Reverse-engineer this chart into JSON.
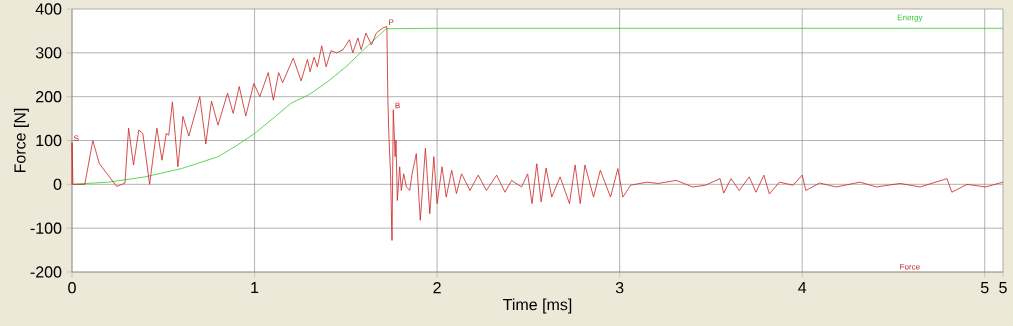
{
  "chart_data": {
    "type": "line",
    "xlabel": "Time [ms]",
    "ylabel": "Force [N]",
    "xlim": [
      0,
      5.1
    ],
    "ylim": [
      -200,
      400
    ],
    "xticks": [
      0,
      1,
      2,
      3,
      4,
      5,
      {
        "value": 5.1,
        "label": "5"
      }
    ],
    "yticks": [
      -200,
      -100,
      0,
      100,
      200,
      300,
      400
    ],
    "grid": true,
    "marker": "none",
    "line_style": "solid",
    "annotations": [
      {
        "text": "S",
        "x": 0,
        "y": 95
      },
      {
        "text": "P",
        "x": 1.725,
        "y": 360
      },
      {
        "text": "B",
        "x": 1.76,
        "y": 170
      }
    ],
    "series": [
      {
        "name": "Energy",
        "color": "#33cc33",
        "x": [
          0,
          0.2,
          0.4,
          0.6,
          0.8,
          0.9,
          1,
          1.1,
          1.2,
          1.3,
          1.4,
          1.5,
          1.6,
          1.72,
          2,
          3,
          4,
          5.1
        ],
        "values": [
          0,
          5,
          17,
          36,
          63,
          88,
          116,
          150,
          185,
          205,
          234,
          268,
          308,
          355,
          356,
          356,
          356,
          356
        ]
      },
      {
        "name": "Force",
        "color": "#cc2222",
        "x": [
          0,
          0,
          0.005,
          0.07,
          0.114,
          0.15,
          0.205,
          0.245,
          0.29,
          0.31,
          0.337,
          0.366,
          0.388,
          0.425,
          0.465,
          0.493,
          0.516,
          0.53,
          0.55,
          0.58,
          0.608,
          0.64,
          0.7,
          0.733,
          0.764,
          0.8,
          0.852,
          0.883,
          0.916,
          0.952,
          0.996,
          1.029,
          1.075,
          1.103,
          1.132,
          1.154,
          1.212,
          1.255,
          1.29,
          1.304,
          1.326,
          1.344,
          1.368,
          1.392,
          1.419,
          1.45,
          1.484,
          1.52,
          1.538,
          1.566,
          1.584,
          1.61,
          1.64,
          1.667,
          1.703,
          1.725,
          1.73,
          1.736,
          1.745,
          1.753,
          1.76,
          1.77,
          1.775,
          1.782,
          1.795,
          1.804,
          1.817,
          1.832,
          1.85,
          1.863,
          1.886,
          1.908,
          1.936,
          1.96,
          1.982,
          2,
          2.027,
          2.05,
          2.08,
          2.106,
          2.134,
          2.18,
          2.225,
          2.27,
          2.326,
          2.372,
          2.408,
          2.463,
          2.496,
          2.52,
          2.546,
          2.57,
          2.597,
          2.628,
          2.674,
          2.725,
          2.756,
          2.784,
          2.81,
          2.857,
          2.894,
          2.95,
          2.99,
          3.018,
          3.06,
          3.15,
          3.21,
          3.31,
          3.4,
          3.47,
          3.55,
          3.57,
          3.61,
          3.655,
          3.71,
          3.747,
          3.79,
          3.82,
          3.875,
          3.95,
          4,
          4.02,
          4.095,
          4.187,
          4.316,
          4.407,
          4.536,
          4.646,
          4.793,
          4.82,
          4.903,
          5.004,
          5.1
        ],
        "values": [
          0,
          95,
          0,
          0,
          100,
          47,
          17,
          -5,
          3,
          128,
          44,
          124,
          116,
          0,
          128,
          55,
          116,
          112,
          188,
          40,
          155,
          110,
          200,
          92,
          190,
          135,
          208,
          162,
          223,
          156,
          230,
          200,
          255,
          192,
          255,
          232,
          288,
          236,
          285,
          257,
          290,
          268,
          316,
          268,
          305,
          300,
          307,
          330,
          300,
          334,
          307,
          345,
          318,
          345,
          357,
          360,
          200,
          108,
          24,
          -128,
          170,
          63,
          101,
          -37,
          40,
          -14,
          24,
          -6,
          -14,
          24,
          70,
          -82,
          82,
          -67,
          63,
          -44,
          40,
          -29,
          32,
          -21,
          24,
          -14,
          21,
          -14,
          21,
          -18,
          9,
          -6,
          24,
          -44,
          47,
          -40,
          37,
          -29,
          17,
          -44,
          44,
          -44,
          44,
          -29,
          32,
          -29,
          36,
          -29,
          -2,
          5,
          2,
          9,
          -6,
          -2,
          13,
          -20,
          13,
          -14,
          17,
          -18,
          21,
          -22,
          5,
          -2,
          21,
          -14,
          3,
          -6,
          5,
          -6,
          2,
          -6,
          13,
          -18,
          0,
          -6,
          5
        ]
      }
    ]
  }
}
